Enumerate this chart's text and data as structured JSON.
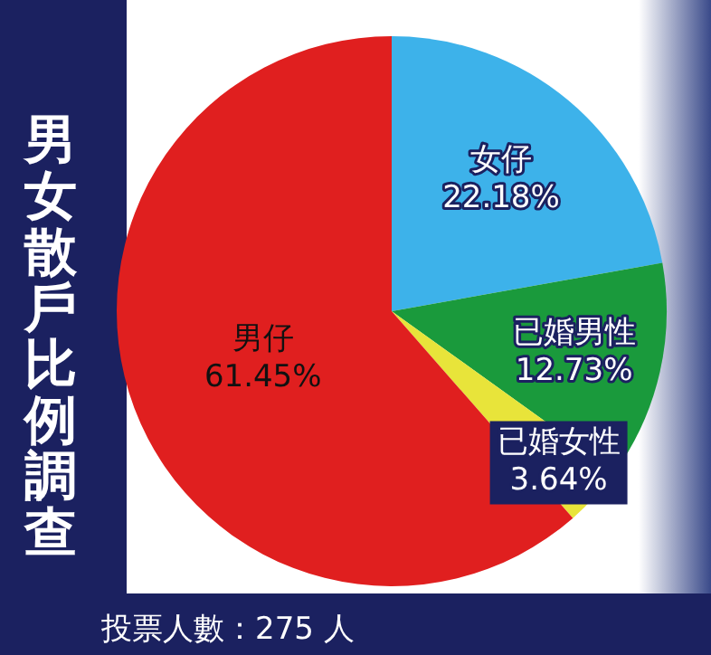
{
  "chart_data": {
    "type": "pie",
    "title": "男女散戶比例調查",
    "categories": [
      "女仔",
      "已婚男性",
      "已婚女性",
      "男仔"
    ],
    "values": [
      22.18,
      12.73,
      3.64,
      61.45
    ],
    "value_labels": [
      "22.18%",
      "12.73%",
      "3.64%",
      "61.45%"
    ],
    "colors": [
      "#3db2ea",
      "#1a9a3c",
      "#e8e43a",
      "#e01f1f"
    ],
    "legend": false,
    "annotations": [
      "投票人數：275 人"
    ]
  }
}
